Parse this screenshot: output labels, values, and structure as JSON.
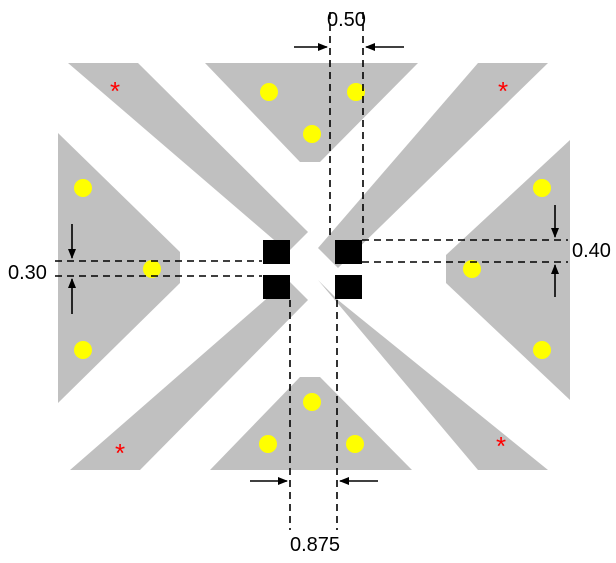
{
  "colors": {
    "background": "#ffffff",
    "pad": "#c0c0c0",
    "via": "#ffff00",
    "star": "#ff0000",
    "contact": "#000000",
    "dimension": "#000000"
  },
  "dimensions": {
    "top_gap": "0.50",
    "left_gap": "0.30",
    "right_gap": "0.40",
    "bottom_gap": "0.875"
  },
  "markers": {
    "star_glyph": "*"
  }
}
